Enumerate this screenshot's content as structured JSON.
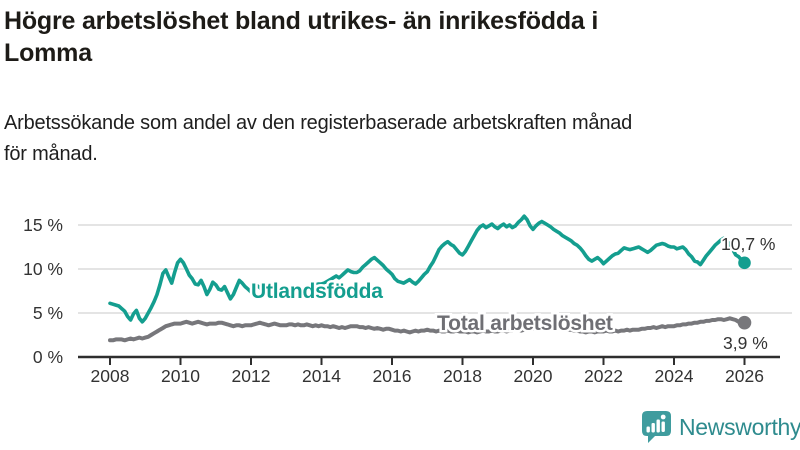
{
  "chart_data": {
    "type": "line",
    "title_lines": [
      "Högre arbetslöshet bland utrikes- än inrikesfödda i",
      "Lomma"
    ],
    "subtitle_lines": [
      "Arbetssökande som andel av den registerbaserade arbetskraften månad",
      "för månad."
    ],
    "xlabel": "",
    "ylabel": "",
    "unit": "%",
    "grid": "horizontal",
    "ylim": [
      0,
      17
    ],
    "xlim": [
      2007.1,
      2027.3
    ],
    "x_axis": {
      "ticks": [
        {
          "year": 2008,
          "label": "2008"
        },
        {
          "year": 2010,
          "label": "2010"
        },
        {
          "year": 2012,
          "label": "2012"
        },
        {
          "year": 2014,
          "label": "2014"
        },
        {
          "year": 2016,
          "label": "2016"
        },
        {
          "year": 2018,
          "label": "2018"
        },
        {
          "year": 2020,
          "label": "2020"
        },
        {
          "year": 2022,
          "label": "2022"
        },
        {
          "year": 2024,
          "label": "2024"
        },
        {
          "year": 2026,
          "label": "2026"
        }
      ]
    },
    "y_axis": {
      "ticks": [
        {
          "value": 0,
          "label": "0 %"
        },
        {
          "value": 5,
          "label": "5 %"
        },
        {
          "value": 10,
          "label": "10 %"
        },
        {
          "value": 15,
          "label": "15 %"
        }
      ]
    },
    "series": [
      {
        "name": "Utlandsfödda",
        "color": "#149e8f",
        "label_color": "#149e8f",
        "end_value_label": "10,7 %",
        "end_value": 10.7,
        "start_year": 2008,
        "points_per_year": 12,
        "values": [
          6.1,
          6.0,
          5.9,
          5.8,
          5.5,
          5.2,
          4.6,
          4.2,
          4.9,
          5.3,
          4.4,
          4.0,
          4.4,
          5.0,
          5.6,
          6.3,
          7.1,
          8.2,
          9.5,
          9.9,
          9.1,
          8.4,
          9.6,
          10.7,
          11.1,
          10.7,
          10.0,
          9.3,
          8.9,
          8.3,
          8.2,
          8.7,
          8.0,
          7.1,
          7.7,
          8.5,
          8.2,
          7.7,
          7.6,
          8.0,
          7.3,
          6.6,
          7.1,
          7.9,
          8.7,
          8.4,
          8.0,
          7.7,
          7.4,
          7.7,
          8.1,
          7.9,
          7.5,
          7.3,
          7.5,
          7.7,
          7.6,
          7.4,
          7.7,
          7.9,
          7.9,
          7.7,
          7.6,
          7.7,
          7.8,
          7.6,
          7.8,
          8.0,
          7.9,
          8.1,
          8.2,
          8.3,
          8.3,
          8.4,
          8.6,
          8.8,
          9.0,
          9.2,
          9.0,
          9.3,
          9.6,
          9.9,
          9.7,
          9.6,
          9.6,
          9.8,
          10.2,
          10.5,
          10.8,
          11.1,
          11.3,
          11.0,
          10.7,
          10.4,
          10.0,
          9.7,
          9.4,
          8.9,
          8.6,
          8.5,
          8.4,
          8.6,
          8.8,
          8.5,
          8.3,
          8.6,
          9.0,
          9.4,
          9.7,
          10.3,
          10.8,
          11.5,
          12.2,
          12.6,
          12.9,
          13.1,
          12.8,
          12.6,
          12.2,
          11.8,
          11.6,
          12.0,
          12.6,
          13.2,
          13.8,
          14.4,
          14.8,
          15.0,
          14.7,
          14.9,
          15.1,
          14.8,
          14.6,
          14.9,
          15.1,
          14.8,
          15.0,
          14.7,
          14.9,
          15.3,
          15.6,
          16.0,
          15.6,
          14.9,
          14.5,
          14.9,
          15.2,
          15.4,
          15.2,
          15.0,
          14.8,
          14.5,
          14.3,
          14.1,
          13.8,
          13.6,
          13.4,
          13.2,
          12.9,
          12.7,
          12.4,
          12.0,
          11.5,
          11.1,
          10.9,
          11.1,
          11.3,
          11.0,
          10.6,
          10.9,
          11.2,
          11.5,
          11.7,
          11.8,
          12.1,
          12.4,
          12.3,
          12.2,
          12.3,
          12.4,
          12.5,
          12.3,
          12.1,
          11.9,
          12.1,
          12.4,
          12.7,
          12.8,
          12.9,
          12.8,
          12.6,
          12.5,
          12.5,
          12.3,
          12.4,
          12.5,
          12.2,
          11.7,
          11.4,
          10.9,
          10.8,
          10.5,
          11.0,
          11.5,
          11.9,
          12.3,
          12.7,
          13.0,
          13.3,
          13.5,
          13.2,
          12.6,
          12.2,
          11.6,
          11.4,
          11.0,
          10.7
        ]
      },
      {
        "name": "Total arbetslöshet",
        "color": "#77777b",
        "label_color": "#6f6f74",
        "end_value_label": "3,9 %",
        "end_value": 3.9,
        "start_year": 2008,
        "points_per_year": 12,
        "values": [
          1.9,
          1.9,
          2.0,
          2.0,
          2.0,
          1.9,
          2.0,
          2.1,
          2.0,
          2.1,
          2.2,
          2.1,
          2.2,
          2.3,
          2.5,
          2.7,
          2.9,
          3.1,
          3.3,
          3.5,
          3.6,
          3.7,
          3.8,
          3.8,
          3.8,
          3.9,
          4.0,
          3.9,
          3.8,
          3.9,
          4.0,
          3.9,
          3.8,
          3.7,
          3.8,
          3.8,
          3.8,
          3.9,
          3.9,
          3.8,
          3.7,
          3.6,
          3.5,
          3.6,
          3.6,
          3.5,
          3.6,
          3.6,
          3.6,
          3.7,
          3.8,
          3.9,
          3.8,
          3.7,
          3.6,
          3.7,
          3.8,
          3.7,
          3.6,
          3.6,
          3.6,
          3.7,
          3.7,
          3.6,
          3.7,
          3.6,
          3.6,
          3.7,
          3.6,
          3.5,
          3.6,
          3.5,
          3.6,
          3.5,
          3.5,
          3.4,
          3.5,
          3.4,
          3.3,
          3.4,
          3.3,
          3.4,
          3.5,
          3.5,
          3.5,
          3.4,
          3.4,
          3.3,
          3.4,
          3.3,
          3.2,
          3.3,
          3.2,
          3.1,
          3.2,
          3.2,
          3.1,
          3.0,
          3.0,
          2.9,
          3.0,
          2.9,
          2.8,
          2.9,
          3.0,
          2.9,
          3.0,
          3.0,
          3.1,
          3.0,
          3.0,
          2.9,
          3.0,
          2.9,
          2.9,
          3.0,
          2.9,
          2.9,
          3.0,
          2.9,
          2.9,
          2.9,
          2.8,
          2.9,
          2.9,
          2.8,
          2.9,
          3.0,
          2.9,
          2.9,
          3.0,
          2.9,
          2.9,
          3.0,
          3.0,
          2.9,
          3.0,
          3.0,
          3.1,
          3.1,
          3.0,
          3.1,
          3.1,
          3.2,
          3.2,
          3.3,
          3.4,
          3.5,
          3.5,
          3.4,
          3.4,
          3.3,
          3.3,
          3.2,
          3.2,
          3.1,
          3.1,
          3.1,
          3.0,
          3.0,
          2.9,
          2.9,
          2.8,
          2.9,
          2.9,
          2.8,
          2.9,
          2.9,
          2.9,
          3.0,
          2.9,
          2.9,
          3.0,
          2.9,
          3.0,
          3.0,
          3.1,
          3.0,
          3.1,
          3.1,
          3.1,
          3.2,
          3.2,
          3.3,
          3.3,
          3.4,
          3.3,
          3.4,
          3.5,
          3.4,
          3.5,
          3.5,
          3.5,
          3.6,
          3.6,
          3.7,
          3.7,
          3.8,
          3.8,
          3.9,
          3.9,
          4.0,
          4.0,
          4.1,
          4.1,
          4.2,
          4.2,
          4.3,
          4.3,
          4.2,
          4.3,
          4.4,
          4.3,
          4.2,
          4.0,
          4.0,
          3.9
        ]
      }
    ],
    "annotation_color": "#333333",
    "gridline_color": "#dcdcdc",
    "axis_color": "#2e2e2e"
  },
  "branding": {
    "logo_text": "Newsworthy",
    "logo_icon": "speech-bubble-bar-chart-icon",
    "logo_color": "#3f9c9e",
    "logo_text_color": "#2e8b8e"
  }
}
